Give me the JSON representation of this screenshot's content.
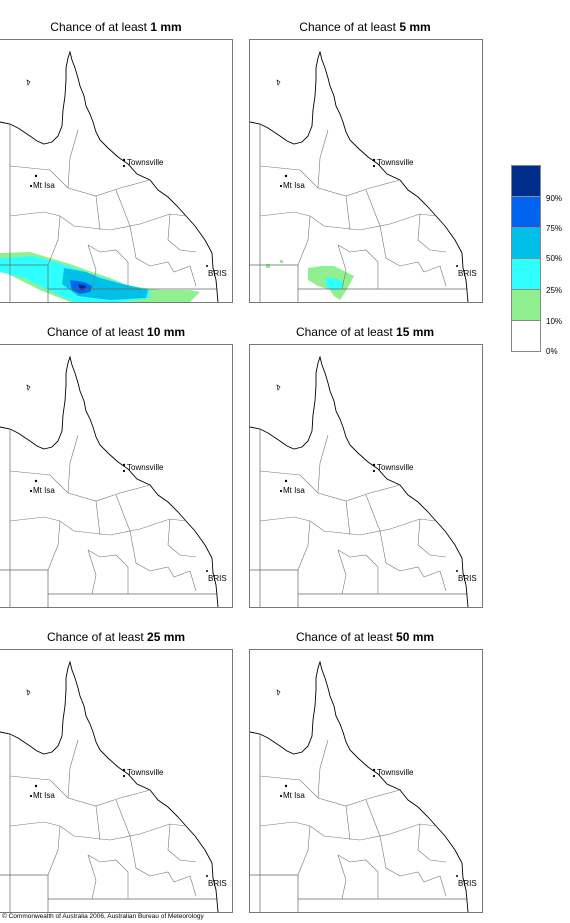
{
  "panels": [
    {
      "prefix": "Chance of at least ",
      "amount": "1 mm"
    },
    {
      "prefix": "Chance of at least ",
      "amount": "5 mm"
    },
    {
      "prefix": "Chance of at least ",
      "amount": "10 mm"
    },
    {
      "prefix": "Chance of at least ",
      "amount": "15 mm"
    },
    {
      "prefix": "Chance of at least ",
      "amount": "25 mm"
    },
    {
      "prefix": "Chance of at least ",
      "amount": "50 mm"
    }
  ],
  "cities": {
    "townsville": "Townsville",
    "mt_isa": "Mt Isa",
    "bris": "BRIS"
  },
  "legend": {
    "labels": [
      "90%",
      "75%",
      "50%",
      "25%",
      "10%",
      "0%"
    ],
    "colors": [
      "#002c8a",
      "#0064f0",
      "#00c0e8",
      "#30ffff",
      "#90f090",
      "#ffffff"
    ]
  },
  "copyright": "© Commonwealth of Australia 2006, Australian Bureau of Meteorology"
}
